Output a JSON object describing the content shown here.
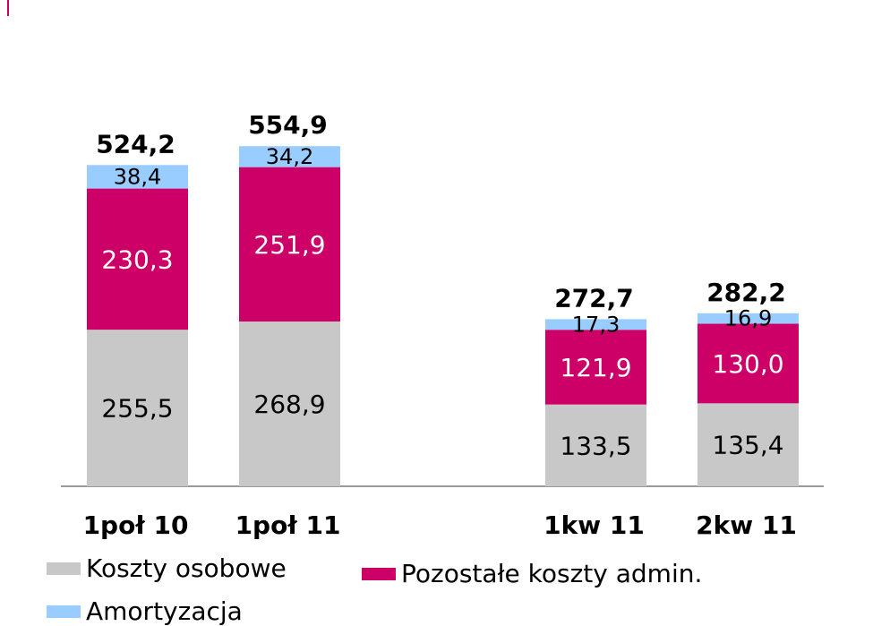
{
  "chart_data": {
    "type": "bar",
    "stacked": true,
    "categories": [
      "1poł 10",
      "1poł 11",
      "1kw 11",
      "2kw 11"
    ],
    "totals": [
      "524,2",
      "554,9",
      "272,7",
      "282,2"
    ],
    "series": [
      {
        "name": "Koszty osobowe",
        "color": "#c8c8c8",
        "values": [
          255.5,
          268.9,
          133.5,
          135.4
        ],
        "labels": [
          "255,5",
          "268,9",
          "133,5",
          "135,4"
        ],
        "label_color": "#000000"
      },
      {
        "name": "Pozostałe koszty admin.",
        "color": "#cc0066",
        "values": [
          230.3,
          251.9,
          121.9,
          130.0
        ],
        "labels": [
          "230,3",
          "251,9",
          "121,9",
          "130,0"
        ],
        "label_color": "#ffffff"
      },
      {
        "name": "Amortyzacja",
        "color": "#99ccff",
        "values": [
          38.4,
          34.2,
          17.3,
          16.9
        ],
        "labels": [
          "38,4",
          "34,2",
          "17,3",
          "16,9"
        ],
        "label_color": "#000000"
      }
    ],
    "ylim": [
      0,
      620
    ],
    "grid": false,
    "legend_position": "bottom-left"
  }
}
